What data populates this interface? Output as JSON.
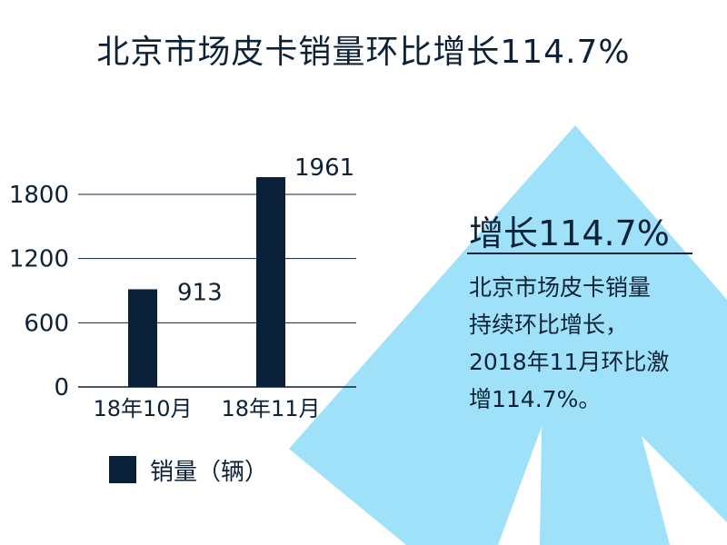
{
  "title": "北京市场皮卡销量环比增长114.7%",
  "callout": {
    "heading": "增长114.7%",
    "body_lines": [
      "北京市场皮卡销量",
      "持续环比增长，",
      "2018年11月环比激",
      "增114.7%。"
    ]
  },
  "colors": {
    "bar": "#0a2039",
    "arrow": "#9ee1f8",
    "text": "#0d2137",
    "grid": "#0a2039"
  },
  "chart_data": {
    "type": "bar",
    "categories": [
      "18年10月",
      "18年11月"
    ],
    "series": [
      {
        "name": "销量（辆）",
        "values": [
          913,
          1961
        ]
      }
    ],
    "yticks": [
      0,
      600,
      1200,
      1800
    ],
    "ylim": [
      0,
      2000
    ],
    "data_labels": [
      "913",
      "1961"
    ],
    "legend": {
      "label": "销量（辆）",
      "position": "bottom"
    },
    "grid": true
  }
}
